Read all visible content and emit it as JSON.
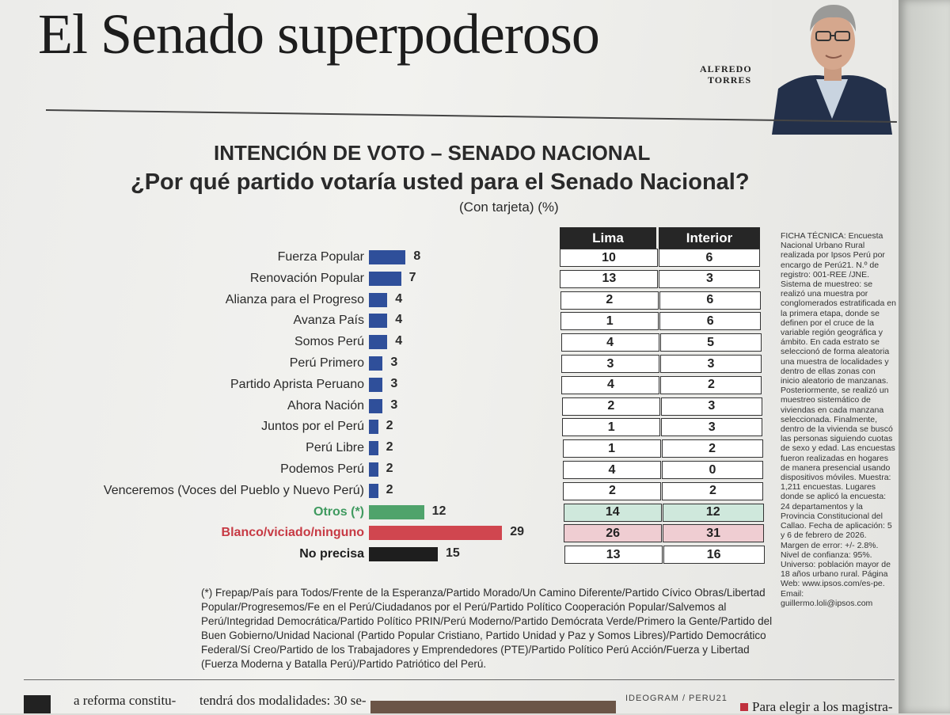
{
  "page": {
    "headline": "El Senado superpoderoso",
    "author_line1": "ALFREDO",
    "author_line2": "TORRES",
    "credit": "IDEOGRAM / PERU21",
    "body_col1": "a reforma constitu-",
    "body_col2": "tendrá dos modalidades: 30 se-",
    "body_col3": "Para elegir a los magistra-"
  },
  "chart_data": {
    "type": "bar",
    "title": "INTENCIÓN DE VOTO – SENADO NACIONAL",
    "subtitle": "¿Por qué partido votaría usted para el Senado Nacional?",
    "unit": "(Con tarjeta) (%)",
    "categories": [
      "Fuerza Popular",
      "Renovación Popular",
      "Alianza para el Progreso",
      "Avanza País",
      "Somos Perú",
      "Perú Primero",
      "Partido Aprista Peruano",
      "Ahora Nación",
      "Juntos por el Perú",
      "Perú Libre",
      "Podemos Perú",
      "Venceremos (Voces del Pueblo y Nuevo Perú)",
      "Otros (*)",
      "Blanco/viciado/ninguno",
      "No precisa"
    ],
    "values": [
      8,
      7,
      4,
      4,
      4,
      3,
      3,
      3,
      2,
      2,
      2,
      2,
      12,
      29,
      15
    ],
    "bar_colors": [
      "#2f4f9a",
      "#2f4f9a",
      "#2f4f9a",
      "#2f4f9a",
      "#2f4f9a",
      "#2f4f9a",
      "#2f4f9a",
      "#2f4f9a",
      "#2f4f9a",
      "#2f4f9a",
      "#2f4f9a",
      "#2f4f9a",
      "#4fa36b",
      "#d0464f",
      "#1e1e1e"
    ],
    "label_colors": [
      "#2a2a2a",
      "#2a2a2a",
      "#2a2a2a",
      "#2a2a2a",
      "#2a2a2a",
      "#2a2a2a",
      "#2a2a2a",
      "#2a2a2a",
      "#2a2a2a",
      "#2a2a2a",
      "#2a2a2a",
      "#2a2a2a",
      "#3f9a5f",
      "#c73a44",
      "#1e1e1e"
    ],
    "label_bold": [
      false,
      false,
      false,
      false,
      false,
      false,
      false,
      false,
      false,
      false,
      false,
      false,
      true,
      true,
      true
    ],
    "table": {
      "headers": [
        "Lima",
        "Interior"
      ],
      "lima": [
        10,
        13,
        2,
        1,
        4,
        3,
        4,
        2,
        1,
        1,
        4,
        2,
        14,
        26,
        13
      ],
      "interior": [
        6,
        3,
        6,
        6,
        5,
        3,
        2,
        3,
        3,
        2,
        0,
        2,
        12,
        31,
        16
      ],
      "row_fills": [
        "#ffffff",
        "#ffffff",
        "#ffffff",
        "#ffffff",
        "#ffffff",
        "#ffffff",
        "#ffffff",
        "#ffffff",
        "#ffffff",
        "#ffffff",
        "#ffffff",
        "#ffffff",
        "#cfe8dc",
        "#efcdd2",
        "#ffffff"
      ]
    },
    "ficha_tecnica": "FICHA TÉCNICA: Encuesta Nacional Urbano Rural realizada por Ipsos Perú por encargo de Perú21. N.º de registro: 001-REE /JNE. Sistema de muestreo: se realizó una muestra por conglomerados estratificada en la primera etapa, donde se definen por el cruce de la variable región geográfica y ámbito. En cada estrato se seleccionó de forma aleatoria una muestra de localidades y dentro de ellas zonas con inicio aleatorio de manzanas. Posteriormente, se realizó un muestreo sistemático de viviendas en cada manzana seleccionada. Finalmente, dentro de la vivienda se buscó las personas siguiendo cuotas de sexo y edad. Las encuestas fueron realizadas en hogares de manera presencial usando dispositivos móviles. Muestra: 1,211 encuestas. Lugares donde se aplicó la encuesta: 24 departamentos y la Provincia Constitucional del Callao. Fecha de aplicación: 5 y 6 de febrero de 2026. Margen de error: +/- 2.8%. Nivel de confianza: 95%. Universo: población mayor de 18 años urbano rural. Página Web: www.ipsos.com/es-pe. Email: guillermo.loli@ipsos.com",
    "footnote": "(*) Frepap/País para Todos/Frente de la Esperanza/Partido Morado/Un Camino Diferente/Partido Cívico Obras/Libertad Popular/Progresemos/Fe en el Perú/Ciudadanos por el Perú/Partido Político Cooperación Popular/Salvemos al Perú/Integridad Democrática/Partido Político PRIN/Perú Moderno/Partido Demócrata Verde/Primero la Gente/Partido del Buen Gobierno/Unidad Nacional (Partido Popular Cristiano, Partido Unidad y Paz y Somos Libres)/Partido Democrático Federal/Sí Creo/Partido de los Trabajadores y Emprendedores (PTE)/Partido Político Perú Acción/Fuerza y Libertad (Fuerza Moderna y Batalla Perú)/Partido Patriótico del Perú."
  }
}
